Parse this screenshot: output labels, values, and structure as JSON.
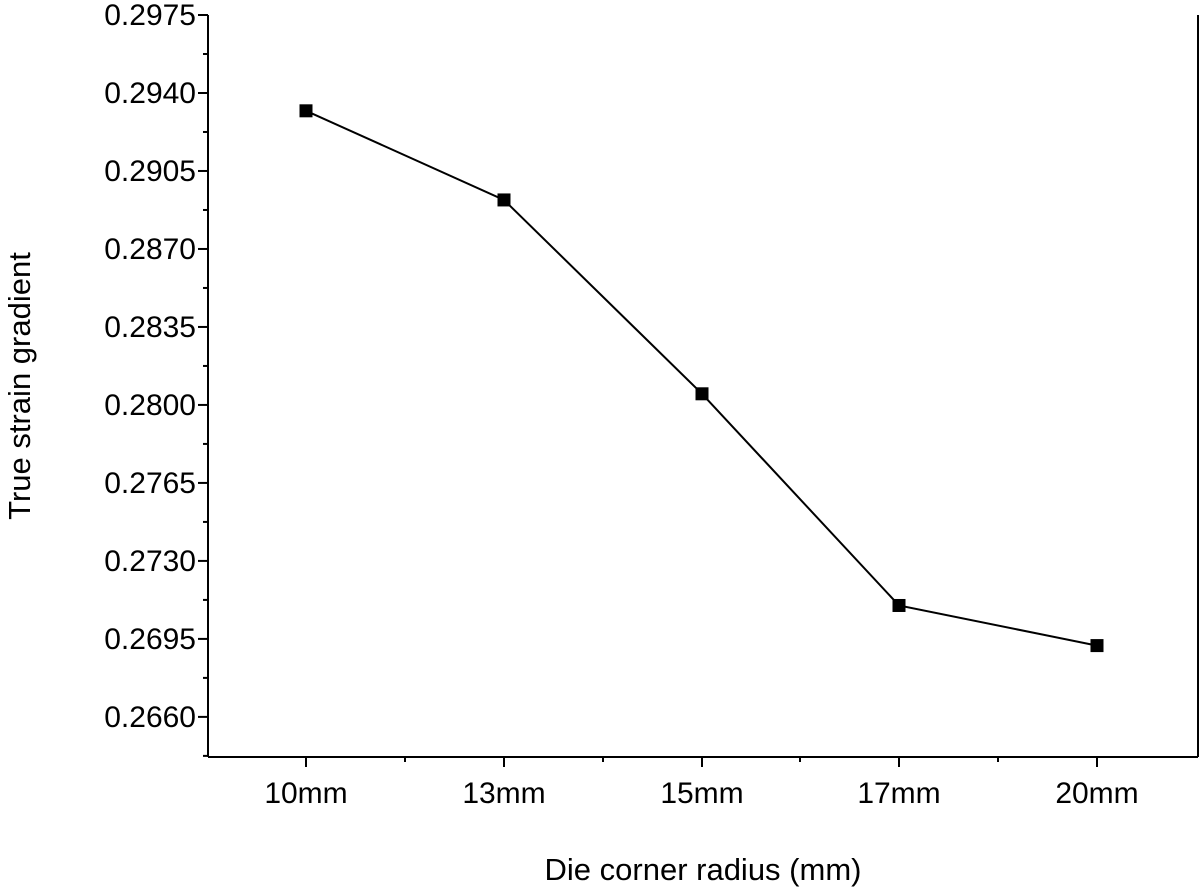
{
  "chart_data": {
    "type": "line",
    "title": "",
    "xlabel": "Die corner radius (mm)",
    "ylabel": "True strain gradient",
    "categories": [
      "10mm",
      "13mm",
      "15mm",
      "17mm",
      "20mm"
    ],
    "series": [
      {
        "values": [
          0.2932,
          0.2892,
          0.2805,
          0.271,
          0.2692
        ],
        "marker": "square",
        "color": "#000000"
      }
    ],
    "yticks": [
      "0.2660",
      "0.2695",
      "0.2730",
      "0.2765",
      "0.2800",
      "0.2835",
      "0.2870",
      "0.2905",
      "0.2940",
      "0.2975"
    ],
    "ylim": [
      0.2642,
      0.2975
    ],
    "grid": false,
    "legend": "none"
  }
}
